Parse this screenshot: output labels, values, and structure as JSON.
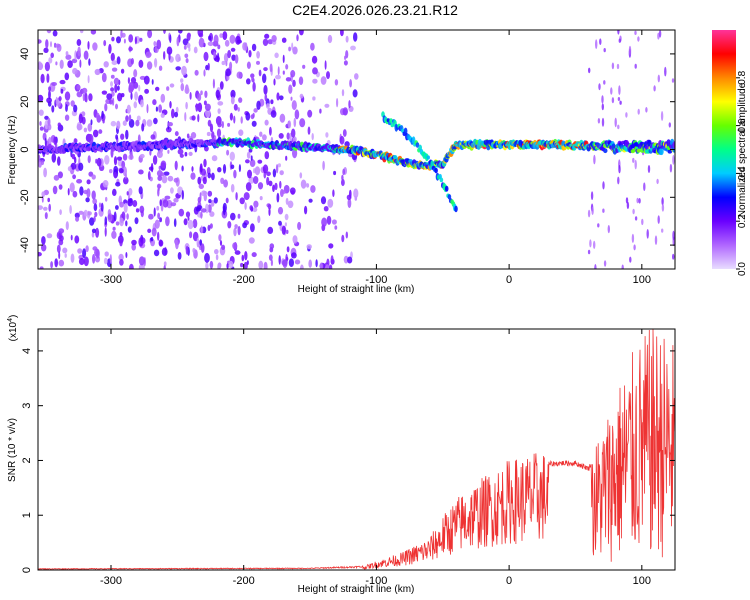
{
  "chart_data": [
    {
      "type": "heatmap",
      "title": "C2E4.2026.026.23.21.R12",
      "xlabel": "Height of straight line (km)",
      "ylabel": "Frequency (Hz)",
      "xlim": [
        -355,
        125
      ],
      "ylim": [
        -50,
        50
      ],
      "xticks": [
        -300,
        -200,
        -100,
        0,
        100
      ],
      "yticks": [
        -40,
        -20,
        0,
        20,
        40
      ],
      "colorbar": {
        "label": "Normalized spectral amplitude",
        "range": [
          0,
          1
        ],
        "ticks": [
          "0.0",
          "0.2",
          "0.4",
          "0.6",
          "0.8"
        ]
      },
      "features": [
        {
          "name": "noise region",
          "x_range": [
            -355,
            -135
          ],
          "y_range": [
            -50,
            50
          ],
          "amplitude": 0.15
        },
        {
          "name": "main echo trace",
          "points": [
            [
              -355,
              0
            ],
            [
              -210,
              3
            ],
            [
              -150,
              1
            ],
            [
              -120,
              0
            ],
            [
              -100,
              -2
            ],
            [
              -80,
              -5
            ],
            [
              -65,
              -7
            ],
            [
              -50,
              -6
            ],
            [
              -40,
              2
            ],
            [
              -20,
              2
            ],
            [
              0,
              2
            ],
            [
              40,
              2
            ],
            [
              80,
              1
            ],
            [
              125,
              1
            ]
          ],
          "amplitude": 0.9
        },
        {
          "name": "upper branch",
          "points": [
            [
              -95,
              14
            ],
            [
              -80,
              8
            ],
            [
              -70,
              2
            ],
            [
              -60,
              -5
            ],
            [
              -50,
              -14
            ],
            [
              -40,
              -25
            ]
          ],
          "amplitude": 0.45
        }
      ]
    },
    {
      "type": "line",
      "xlabel": "Height of straight line (km)",
      "ylabel": "SNR (10 * v/v)",
      "multiplier": "(x10",
      "multiplier_exp": "4",
      "xlim": [
        -355,
        125
      ],
      "ylim": [
        0,
        4.4
      ],
      "xticks": [
        -300,
        -200,
        -100,
        0,
        100
      ],
      "yticks": [
        0,
        1,
        2,
        3,
        4
      ],
      "color": "#ee3333",
      "envelope": {
        "x": [
          -355,
          -150,
          -110,
          -100,
          -80,
          -60,
          -50,
          -40,
          -30,
          -20,
          -10,
          0,
          20,
          40,
          50,
          60,
          70,
          80,
          90,
          100,
          110,
          125
        ],
        "y": [
          0.02,
          0.03,
          0.06,
          0.15,
          0.3,
          0.55,
          0.9,
          1.2,
          1.4,
          1.55,
          1.7,
          1.85,
          1.97,
          2.0,
          2.0,
          1.9,
          2.4,
          3.0,
          3.5,
          3.9,
          4.1,
          3.8
        ]
      }
    }
  ]
}
